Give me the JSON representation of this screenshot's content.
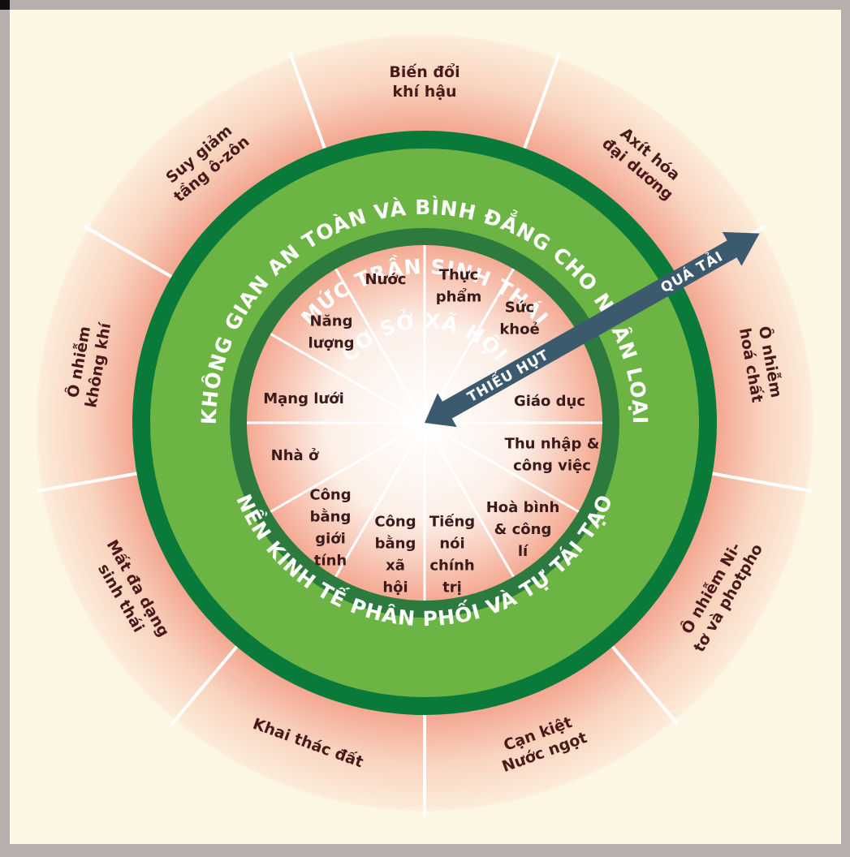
{
  "diagram": {
    "outer_title": "MỨC TRẦN SINH THÁI",
    "middle_title": "KHÔNG GIAN AN TOÀN VÀ BÌNH ĐẲNG CHO NHÂN LOẠI",
    "inner_title": "CƠ SỞ XÃ HỘI",
    "bottom_title": "NỀN KINH TẾ PHÂN PHỐI VÀ TỰ TÁI TẠO",
    "overshoot_label": "QUÁ TẢI",
    "shortfall_label": "THIẾU HỤT",
    "ceiling": [
      {
        "lines": [
          "Biến đổi",
          "khí hậu"
        ]
      },
      {
        "lines": [
          "Axít hóa",
          "đại dương"
        ]
      },
      {
        "lines": [
          "Ô nhiễm",
          "hoá chất"
        ]
      },
      {
        "lines": [
          "Ô nhiễm Ni-",
          "tơ và photpho"
        ]
      },
      {
        "lines": [
          "Cạn kiệt",
          "Nước ngọt"
        ]
      },
      {
        "lines": [
          "Khai thác đất"
        ]
      },
      {
        "lines": [
          "Mất đa dạng",
          "sinh thái"
        ]
      },
      {
        "lines": [
          "Ô nhiễm",
          "không khí"
        ]
      },
      {
        "lines": [
          "Suy giảm",
          "tầng ô-zôn"
        ]
      }
    ],
    "foundation": [
      {
        "lines": [
          "Thực",
          "phẩm"
        ]
      },
      {
        "lines": [
          "Sức",
          "khoẻ"
        ]
      },
      {
        "lines": [
          "Giáo dục"
        ]
      },
      {
        "lines": [
          "Thu nhập &",
          "công việc"
        ]
      },
      {
        "lines": [
          "Hoà bình",
          "& công",
          "lí"
        ]
      },
      {
        "lines": [
          "Tiếng",
          "nói",
          "chính",
          "trị"
        ]
      },
      {
        "lines": [
          "Công",
          "bằng",
          "xã",
          "hội"
        ]
      },
      {
        "lines": [
          "Công",
          "bằng",
          "giới",
          "tính"
        ]
      },
      {
        "lines": [
          "Nhà ở"
        ]
      },
      {
        "lines": [
          "Mạng lưới"
        ]
      },
      {
        "lines": [
          "Năng",
          "lượng"
        ]
      },
      {
        "lines": [
          "Nước"
        ]
      }
    ],
    "colors": {
      "background": "#fdf6e4",
      "dark_green": "#0a7a3a",
      "light_green": "#6cb544",
      "mid_green": "#2d7a3e",
      "arrow": "#3c5a6e",
      "label_text": "#4a1a1a",
      "frame": "#b9aeae"
    }
  }
}
